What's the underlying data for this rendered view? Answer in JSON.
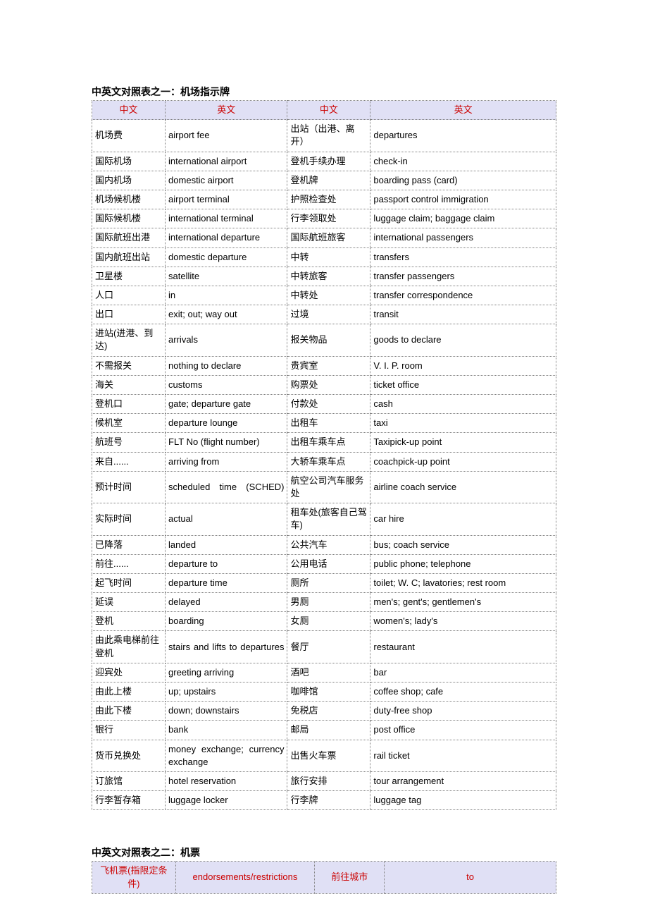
{
  "section1": {
    "title": "中英文对照表之一：机场指示牌",
    "headers": [
      "中文",
      "英文",
      "中文",
      "英文"
    ],
    "colwidths": [
      "15%",
      "25%",
      "17%",
      "38%"
    ],
    "rows": [
      [
        "机场费",
        "airport fee",
        "出站（出港、离开）",
        "departures"
      ],
      [
        "国际机场",
        "international airport",
        "登机手续办理",
        "check-in"
      ],
      [
        "国内机场",
        "domestic airport",
        "登机牌",
        "boarding pass (card)"
      ],
      [
        "机场候机楼",
        "airport terminal",
        "护照检查处",
        "passport control immigration"
      ],
      [
        "国际候机楼",
        "international terminal",
        "行李领取处",
        "luggage claim; baggage claim"
      ],
      [
        "国际航班出港",
        "international departure",
        "国际航班旅客",
        "international passengers"
      ],
      [
        "国内航班出站",
        "domestic departure",
        "中转",
        "transfers"
      ],
      [
        "卫星楼",
        "satellite",
        "中转旅客",
        "transfer passengers"
      ],
      [
        "人口",
        "in",
        "中转处",
        "transfer correspondence"
      ],
      [
        "出口",
        "exit; out; way out",
        "过境",
        "transit"
      ],
      [
        "进站(进港、到达)",
        "arrivals",
        "报关物品",
        "goods to declare"
      ],
      [
        "不需报关",
        "nothing to declare",
        "贵宾室",
        "V. I. P. room"
      ],
      [
        "海关",
        "customs",
        "购票处",
        "ticket office"
      ],
      [
        "登机口",
        "gate; departure gate",
        "付款处",
        "cash"
      ],
      [
        "候机室",
        "departure lounge",
        "出租车",
        "taxi"
      ],
      [
        "航班号",
        "FLT No (flight number)",
        "出租车乘车点",
        "Taxipick-up point"
      ],
      [
        "来自......",
        "arriving from",
        "大轿车乘车点",
        "coachpick-up point"
      ],
      [
        "预计时间",
        "scheduled time (SCHED)",
        "航空公司汽车服务处",
        "airline coach service"
      ],
      [
        "实际时间",
        "actual",
        "租车处(旅客自己驾车)",
        "car hire"
      ],
      [
        "已降落",
        "landed",
        "公共汽车",
        "bus; coach service"
      ],
      [
        "前往......",
        "departure to",
        "公用电话",
        "public phone; telephone"
      ],
      [
        "起飞时间",
        "departure time",
        "厕所",
        "toilet; W. C; lavatories; rest room"
      ],
      [
        "延误",
        "delayed",
        "男厕",
        "men's; gent's; gentlemen's"
      ],
      [
        "登机",
        "boarding",
        "女厕",
        "women's; lady's"
      ],
      [
        "由此乘电梯前往登机",
        "stairs and lifts to departures",
        "餐厅",
        "restaurant"
      ],
      [
        "迎宾处",
        "greeting arriving",
        "酒吧",
        "bar"
      ],
      [
        "由此上楼",
        "up; upstairs",
        "咖啡馆",
        "coffee shop; cafe"
      ],
      [
        "由此下楼",
        "down; downstairs",
        "免税店",
        "duty-free shop"
      ],
      [
        "银行",
        "bank",
        "邮局",
        "post office"
      ],
      [
        "货币兑换处",
        "money exchange; currency exchange",
        "出售火车票",
        "rail ticket"
      ],
      [
        "订旅馆",
        "hotel reservation",
        "旅行安排",
        "tour arrangement"
      ],
      [
        "行李暂存箱",
        "luggage locker",
        "行李牌",
        "luggage tag"
      ]
    ],
    "justify_rows_col2": [
      17,
      24,
      29
    ]
  },
  "section2": {
    "title": "中英文对照表之二：机票",
    "headers": [
      "飞机票(指限定条件)",
      "endorsements/restrictions",
      "前往城市",
      "to"
    ],
    "colwidths": [
      "18%",
      "30%",
      "15%",
      "37%"
    ]
  }
}
